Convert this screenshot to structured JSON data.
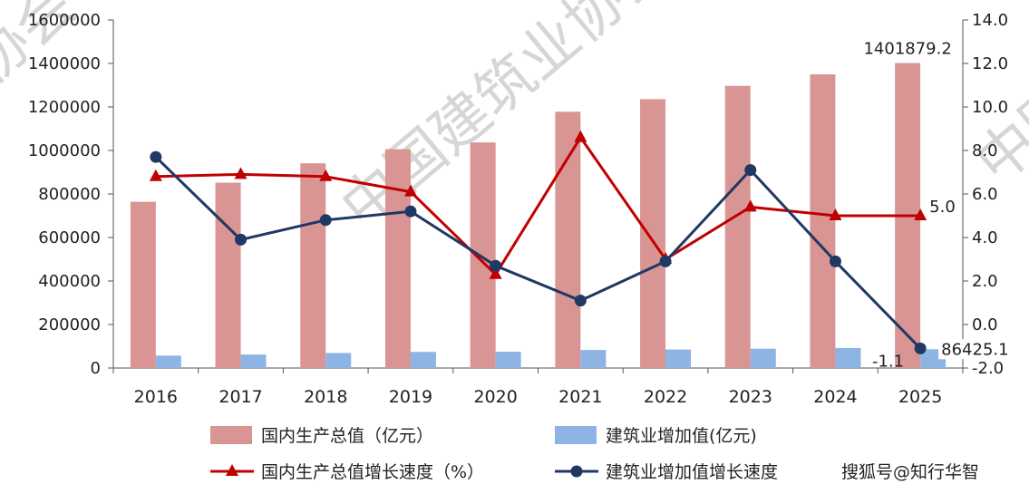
{
  "watermark": [
    "中国建筑业协会",
    "协会",
    "中国"
  ],
  "credit": "搜狐号@知行华智",
  "colors": {
    "gdp_bar": "#d99594",
    "construction_bar": "#8eb4e3",
    "gdp_growth_line": "#c00000",
    "construction_growth_line": "#1f3864",
    "axis": "#555555"
  },
  "chart_data": {
    "type": "bar",
    "categories": [
      "2016",
      "2017",
      "2018",
      "2019",
      "2020",
      "2021",
      "2022",
      "2023",
      "2024",
      "2025"
    ],
    "y_left": {
      "ticks": [
        "0",
        "200000",
        "400000",
        "600000",
        "800000",
        "1000000",
        "1200000",
        "1400000",
        "1600000"
      ],
      "lim": [
        0,
        1600000
      ]
    },
    "y_right": {
      "ticks": [
        "-2.0",
        "0.0",
        "2.0",
        "4.0",
        "6.0",
        "8.0",
        "10.0",
        "12.0",
        "14.0"
      ],
      "lim": [
        -2,
        14
      ]
    },
    "series": [
      {
        "name": "国内生产总值（亿元）",
        "kind": "bar",
        "axis": "left",
        "values": [
          764000,
          852000,
          941000,
          1006000,
          1037000,
          1178000,
          1236000,
          1297000,
          1350000,
          1401879.2
        ]
      },
      {
        "name": "建筑业增加值(亿元)",
        "kind": "bar",
        "axis": "left",
        "values": [
          57000,
          62000,
          69000,
          74000,
          75000,
          83000,
          85000,
          89000,
          92000,
          86425.1
        ]
      },
      {
        "name": "国内生产总值增长速度（%）",
        "kind": "line",
        "marker": "triangle",
        "axis": "right",
        "values": [
          6.8,
          6.9,
          6.8,
          6.1,
          2.3,
          8.6,
          3.0,
          5.4,
          5.0,
          5.0
        ]
      },
      {
        "name": "建筑业增加值增长速度",
        "kind": "line",
        "marker": "circle",
        "axis": "right",
        "values": [
          7.7,
          3.9,
          4.8,
          5.2,
          2.7,
          1.1,
          2.9,
          7.1,
          2.9,
          -1.1
        ]
      }
    ],
    "data_labels": [
      {
        "series": 0,
        "index": 9,
        "text": "1401879.2"
      },
      {
        "series": 1,
        "index": 9,
        "text": "86425.1"
      },
      {
        "series": 2,
        "index": 9,
        "text": "5.0"
      },
      {
        "series": 3,
        "index": 9,
        "text": "-1.1"
      }
    ],
    "legend_position": "bottom",
    "grid": false
  }
}
